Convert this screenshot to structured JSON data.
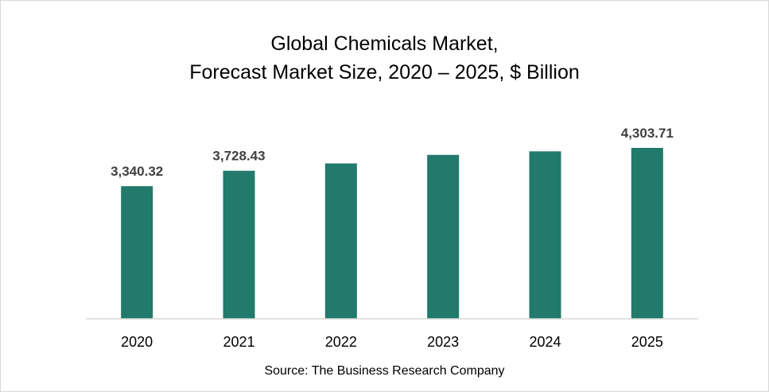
{
  "chart_data": {
    "type": "bar",
    "title_lines": [
      "Global Chemicals Market,",
      "Forecast Market Size, 2020 – 2025, $ Billion"
    ],
    "categories": [
      "2020",
      "2021",
      "2022",
      "2023",
      "2024",
      "2025"
    ],
    "values": [
      3340.32,
      3728.43,
      3913.0,
      4128.0,
      4217.0,
      4303.71
    ],
    "data_labels": [
      "3,340.32",
      "3,728.43",
      "",
      "",
      "",
      "4,303.71"
    ],
    "ylim": [
      0,
      4303.71
    ],
    "grid": false,
    "legend": "none",
    "bar_color": "#217a6b",
    "source": "Source: The Business Research Company"
  }
}
